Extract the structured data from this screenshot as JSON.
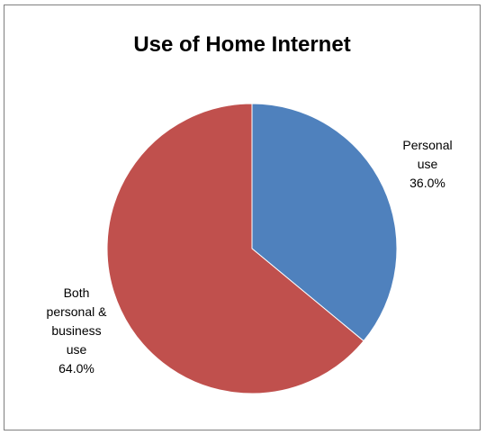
{
  "chart_data": {
    "type": "pie",
    "title": "Use of Home Internet",
    "slices": [
      {
        "label_lines": [
          "Personal",
          "use",
          "36.0%"
        ],
        "value": 36.0,
        "color": "#4F81BD"
      },
      {
        "label_lines": [
          "Both",
          "personal &",
          "business",
          "use",
          "64.0%"
        ],
        "value": 64.0,
        "color": "#C0504D"
      }
    ],
    "start_angle_deg": 0,
    "direction": "clockwise",
    "legend": "none",
    "data_labels": "outside"
  }
}
